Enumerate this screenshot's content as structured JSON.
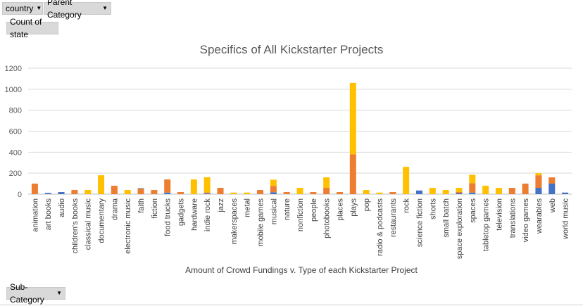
{
  "filters": {
    "country_label": "country",
    "parent_category_label": "Parent Category",
    "value_label": "Count of state",
    "subcategory_label": "Sub-Category"
  },
  "colors": {
    "blue": "#4472c4",
    "orange": "#ed7d31",
    "gray": "#a5a5a5",
    "yellow": "#ffc000"
  },
  "chart_data": {
    "type": "bar",
    "stacked": true,
    "title": "Specifics of All Kickstarter Projects",
    "xlabel": "Amount of Crowd Fundings v. Type of each Kickstarter Project",
    "ylabel": "",
    "ylim": [
      0,
      1200
    ],
    "yticks": [
      0,
      200,
      400,
      600,
      800,
      1000,
      1200
    ],
    "grid": true,
    "categories": [
      "animation",
      "art books",
      "audio",
      "children's books",
      "classical music",
      "documentary",
      "drama",
      "electronic music",
      "faith",
      "fiction",
      "food trucks",
      "gadgets",
      "hardware",
      "indie rock",
      "jazz",
      "makerspaces",
      "metal",
      "mobile games",
      "musical",
      "nature",
      "nonfiction",
      "people",
      "photobooks",
      "places",
      "plays",
      "pop",
      "radio & podcasts",
      "restaurants",
      "rock",
      "science fiction",
      "shorts",
      "small batch",
      "space exploration",
      "spaces",
      "tabletop games",
      "television",
      "translations",
      "video games",
      "wearables",
      "web",
      "world music"
    ],
    "series": [
      {
        "values": [
          0,
          12,
          20,
          0,
          0,
          0,
          0,
          0,
          0,
          0,
          15,
          0,
          0,
          8,
          0,
          0,
          0,
          0,
          18,
          0,
          0,
          0,
          0,
          0,
          0,
          0,
          0,
          0,
          0,
          35,
          0,
          0,
          10,
          15,
          0,
          0,
          0,
          0,
          60,
          100,
          15
        ],
        "color": "#4472c4"
      },
      {
        "values": [
          100,
          0,
          0,
          40,
          0,
          0,
          80,
          0,
          50,
          40,
          125,
          20,
          0,
          8,
          60,
          0,
          0,
          40,
          60,
          20,
          0,
          20,
          60,
          20,
          380,
          0,
          0,
          20,
          0,
          0,
          0,
          0,
          10,
          90,
          0,
          0,
          60,
          100,
          120,
          60,
          0
        ],
        "color": "#ed7d31"
      },
      {
        "values": [
          0,
          0,
          0,
          0,
          0,
          0,
          0,
          0,
          10,
          0,
          0,
          0,
          0,
          0,
          0,
          0,
          0,
          0,
          0,
          0,
          0,
          0,
          0,
          0,
          0,
          0,
          0,
          0,
          0,
          0,
          0,
          0,
          0,
          0,
          0,
          0,
          0,
          0,
          0,
          0,
          0
        ],
        "color": "#a5a5a5"
      },
      {
        "values": [
          0,
          0,
          0,
          0,
          40,
          180,
          0,
          40,
          0,
          0,
          0,
          0,
          140,
          145,
          0,
          15,
          15,
          0,
          60,
          0,
          60,
          0,
          100,
          0,
          680,
          40,
          15,
          0,
          260,
          0,
          60,
          40,
          40,
          80,
          80,
          60,
          0,
          0,
          20,
          0,
          0
        ],
        "color": "#ffc000"
      }
    ]
  }
}
